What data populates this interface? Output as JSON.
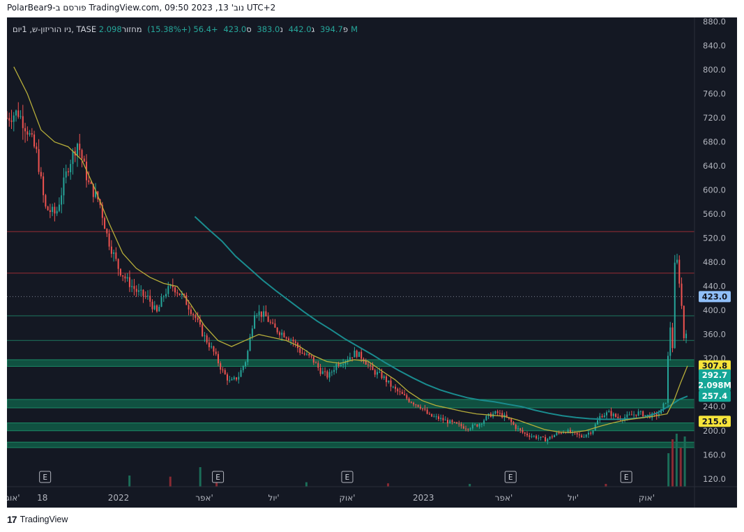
{
  "caption": "PolarBear9-פורסם ב TradingView.com, נוב' 13, 2023 09:50 UTC+2",
  "legend": {
    "symbol": "ניו הוריזון-ש, 1יום, TASE",
    "open_label": "פ",
    "open_value": "394.7",
    "high_label": "ג",
    "high_value": "442.0",
    "low_label": "נ",
    "low_value": "383.0",
    "close_label": "ס",
    "close_value": "423.0",
    "change": "+56.4 (+15.38%)",
    "volume_label": "מחזור",
    "volume_value": "2.098M"
  },
  "footer": {
    "logo": "17",
    "brand": "TradingView"
  },
  "chart_data": {
    "type": "candlestick",
    "y_axis_ticks": [
      "880.0",
      "840.0",
      "800.0",
      "760.0",
      "720.0",
      "680.0",
      "640.0",
      "600.0",
      "560.0",
      "520.0",
      "480.0",
      "440.0",
      "400.0",
      "360.0",
      "320.0",
      "280.0",
      "240.0",
      "200.0",
      "160.0",
      "120.0"
    ],
    "ylim": [
      107,
      887
    ],
    "x_axis_labels": [
      {
        "label": "אוג'",
        "t": 0.045
      },
      {
        "label": "18",
        "t": 0.26
      },
      {
        "label": "2022",
        "t": 0.82
      },
      {
        "label": "אפר'",
        "t": 1.45
      },
      {
        "label": "יול'",
        "t": 1.96
      },
      {
        "label": "אוק'",
        "t": 2.5
      },
      {
        "label": "2023",
        "t": 3.06
      },
      {
        "label": "אפר'",
        "t": 3.65
      },
      {
        "label": "יול'",
        "t": 4.16
      },
      {
        "label": "אוק'",
        "t": 4.7
      }
    ],
    "xlim": [
      0,
      5.0
    ],
    "earnings_markers": [
      {
        "label": "E",
        "t": 0.28
      },
      {
        "label": "E",
        "t": 1.55
      },
      {
        "label": "E",
        "t": 2.5
      },
      {
        "label": "E",
        "t": 3.7
      },
      {
        "label": "E",
        "t": 4.55
      }
    ],
    "price_badges": [
      {
        "value": "423.0",
        "price": 423.0,
        "bg": "#90bff9",
        "fg": "#131722"
      },
      {
        "value": "307.8",
        "price": 307.8,
        "bg": "#f7e43a",
        "fg": "#131722"
      },
      {
        "value": "292.7",
        "price": 292.7,
        "bg": "#14a697",
        "fg": "#ffffff"
      },
      {
        "value": "2.098M",
        "price": 275.5,
        "bg": "#14a697",
        "fg": "#ffffff"
      },
      {
        "value": "257.4",
        "price": 257.4,
        "bg": "#14a697",
        "fg": "#ffffff"
      },
      {
        "value": "215.6",
        "price": 215.6,
        "bg": "#f7e43a",
        "fg": "#131722"
      }
    ],
    "resistance_lines": [
      531,
      462
    ],
    "support_lines": [
      391,
      350
    ],
    "last_price_line": 423,
    "zones": [
      {
        "top": 318,
        "bottom": 307
      },
      {
        "top": 252,
        "bottom": 238
      },
      {
        "top": 213,
        "bottom": 200
      },
      {
        "top": 181,
        "bottom": 172
      }
    ],
    "price_path": [
      [
        0.0,
        720
      ],
      [
        0.08,
        730
      ],
      [
        0.15,
        700
      ],
      [
        0.22,
        660
      ],
      [
        0.28,
        570
      ],
      [
        0.36,
        560
      ],
      [
        0.45,
        640
      ],
      [
        0.52,
        680
      ],
      [
        0.6,
        610
      ],
      [
        0.68,
        580
      ],
      [
        0.74,
        520
      ],
      [
        0.82,
        470
      ],
      [
        0.88,
        450
      ],
      [
        0.96,
        430
      ],
      [
        1.04,
        420
      ],
      [
        1.1,
        395
      ],
      [
        1.16,
        430
      ],
      [
        1.22,
        440
      ],
      [
        1.3,
        420
      ],
      [
        1.38,
        390
      ],
      [
        1.44,
        360
      ],
      [
        1.52,
        330
      ],
      [
        1.58,
        300
      ],
      [
        1.64,
        280
      ],
      [
        1.7,
        290
      ],
      [
        1.76,
        320
      ],
      [
        1.82,
        400
      ],
      [
        1.9,
        390
      ],
      [
        1.96,
        370
      ],
      [
        2.04,
        360
      ],
      [
        2.1,
        350
      ],
      [
        2.16,
        330
      ],
      [
        2.24,
        320
      ],
      [
        2.3,
        300
      ],
      [
        2.36,
        290
      ],
      [
        2.42,
        310
      ],
      [
        2.5,
        320
      ],
      [
        2.56,
        330
      ],
      [
        2.62,
        320
      ],
      [
        2.68,
        300
      ],
      [
        2.76,
        290
      ],
      [
        2.84,
        270
      ],
      [
        2.9,
        260
      ],
      [
        2.96,
        250
      ],
      [
        3.04,
        240
      ],
      [
        3.1,
        225
      ],
      [
        3.18,
        220
      ],
      [
        3.24,
        215
      ],
      [
        3.3,
        210
      ],
      [
        3.38,
        205
      ],
      [
        3.46,
        210
      ],
      [
        3.54,
        225
      ],
      [
        3.6,
        230
      ],
      [
        3.68,
        220
      ],
      [
        3.74,
        205
      ],
      [
        3.8,
        195
      ],
      [
        3.88,
        190
      ],
      [
        3.96,
        185
      ],
      [
        4.04,
        195
      ],
      [
        4.1,
        200
      ],
      [
        4.16,
        195
      ],
      [
        4.22,
        190
      ],
      [
        4.3,
        200
      ],
      [
        4.36,
        225
      ],
      [
        4.42,
        230
      ],
      [
        4.5,
        220
      ],
      [
        4.58,
        225
      ],
      [
        4.64,
        230
      ],
      [
        4.7,
        225
      ],
      [
        4.76,
        225
      ],
      [
        4.8,
        230
      ],
      [
        4.84,
        250
      ],
      [
        4.87,
        380
      ],
      [
        4.89,
        340
      ],
      [
        4.91,
        500
      ],
      [
        4.93,
        470
      ],
      [
        4.95,
        430
      ],
      [
        4.97,
        360
      ],
      [
        4.985,
        340
      ],
      [
        5.0,
        423
      ]
    ],
    "ma_short": [
      [
        0.05,
        805
      ],
      [
        0.15,
        760
      ],
      [
        0.25,
        700
      ],
      [
        0.35,
        680
      ],
      [
        0.45,
        672
      ],
      [
        0.55,
        650
      ],
      [
        0.65,
        600
      ],
      [
        0.75,
        545
      ],
      [
        0.85,
        495
      ],
      [
        0.95,
        470
      ],
      [
        1.05,
        455
      ],
      [
        1.15,
        445
      ],
      [
        1.25,
        440
      ],
      [
        1.35,
        410
      ],
      [
        1.45,
        375
      ],
      [
        1.55,
        350
      ],
      [
        1.65,
        340
      ],
      [
        1.75,
        350
      ],
      [
        1.85,
        360
      ],
      [
        1.95,
        355
      ],
      [
        2.05,
        350
      ],
      [
        2.15,
        340
      ],
      [
        2.25,
        325
      ],
      [
        2.35,
        315
      ],
      [
        2.45,
        312
      ],
      [
        2.55,
        318
      ],
      [
        2.65,
        316
      ],
      [
        2.75,
        300
      ],
      [
        2.85,
        285
      ],
      [
        2.95,
        265
      ],
      [
        3.05,
        250
      ],
      [
        3.15,
        242
      ],
      [
        3.25,
        237
      ],
      [
        3.35,
        232
      ],
      [
        3.45,
        228
      ],
      [
        3.55,
        226
      ],
      [
        3.65,
        224
      ],
      [
        3.75,
        218
      ],
      [
        3.85,
        210
      ],
      [
        3.95,
        202
      ],
      [
        4.05,
        198
      ],
      [
        4.15,
        197
      ],
      [
        4.25,
        200
      ],
      [
        4.35,
        207
      ],
      [
        4.45,
        213
      ],
      [
        4.55,
        218
      ],
      [
        4.65,
        221
      ],
      [
        4.75,
        224
      ],
      [
        4.85,
        228
      ],
      [
        4.9,
        250
      ],
      [
        4.95,
        280
      ],
      [
        5.0,
        307.8
      ]
    ],
    "ma_long": [
      [
        1.38,
        556
      ],
      [
        1.48,
        535
      ],
      [
        1.58,
        515
      ],
      [
        1.68,
        490
      ],
      [
        1.78,
        470
      ],
      [
        1.88,
        450
      ],
      [
        1.98,
        432
      ],
      [
        2.08,
        415
      ],
      [
        2.18,
        398
      ],
      [
        2.28,
        382
      ],
      [
        2.38,
        368
      ],
      [
        2.48,
        353
      ],
      [
        2.58,
        340
      ],
      [
        2.68,
        327
      ],
      [
        2.78,
        313
      ],
      [
        2.88,
        300
      ],
      [
        2.98,
        288
      ],
      [
        3.08,
        277
      ],
      [
        3.18,
        268
      ],
      [
        3.28,
        261
      ],
      [
        3.38,
        255
      ],
      [
        3.48,
        251
      ],
      [
        3.58,
        248
      ],
      [
        3.68,
        244
      ],
      [
        3.78,
        240
      ],
      [
        3.88,
        234
      ],
      [
        3.98,
        229
      ],
      [
        4.08,
        225
      ],
      [
        4.18,
        222
      ],
      [
        4.28,
        220
      ],
      [
        4.38,
        219
      ],
      [
        4.48,
        219
      ],
      [
        4.58,
        220
      ],
      [
        4.68,
        222
      ],
      [
        4.78,
        230
      ],
      [
        4.88,
        243
      ],
      [
        4.94,
        252
      ],
      [
        5.0,
        257.4
      ]
    ],
    "volume_spikes": [
      [
        0.9,
        0.2
      ],
      [
        1.2,
        0.18
      ],
      [
        1.42,
        0.35
      ],
      [
        1.54,
        0.1
      ],
      [
        2.2,
        0.08
      ],
      [
        2.8,
        0.06
      ],
      [
        3.4,
        0.05
      ],
      [
        4.4,
        0.05
      ],
      [
        4.86,
        0.6
      ],
      [
        4.89,
        0.85
      ],
      [
        4.92,
        0.95
      ],
      [
        4.95,
        0.7
      ],
      [
        4.98,
        0.9
      ]
    ]
  }
}
